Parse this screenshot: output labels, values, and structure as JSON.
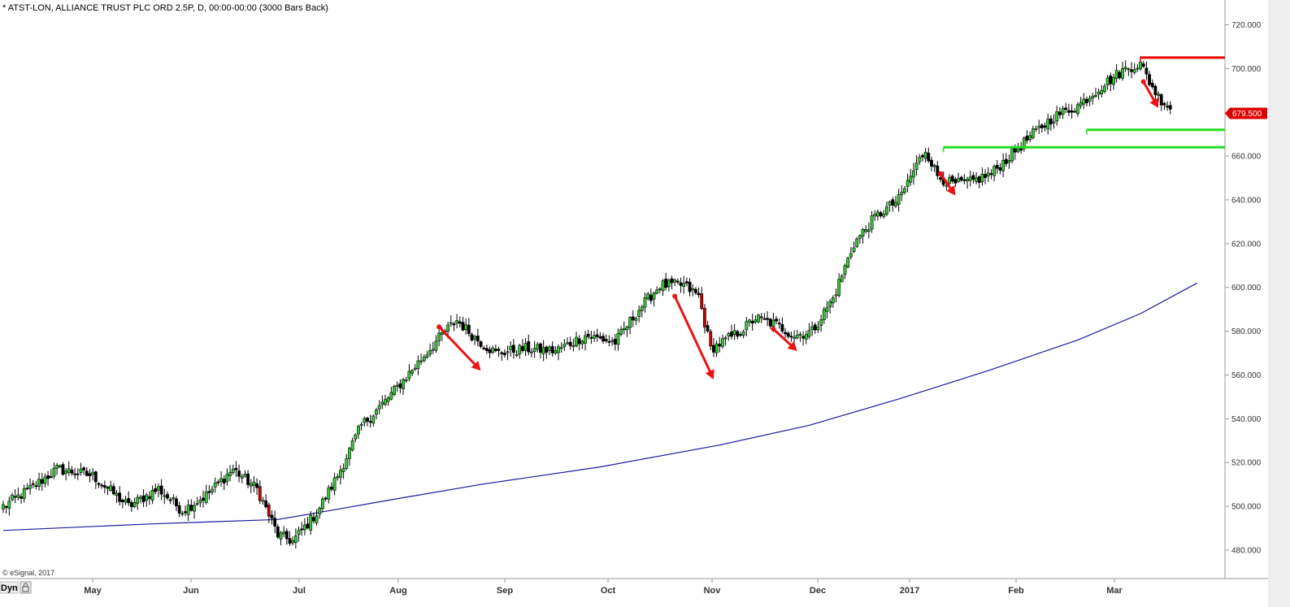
{
  "header": {
    "title": "* ATST-LON, ALLIANCE TRUST PLC ORD 2.5P, D, 00:00-00:00 (3000 Bars Back)"
  },
  "footer": {
    "copyright": "© eSignal, 2017",
    "dyn_label": "Dyn"
  },
  "colors": {
    "up_candle": "#33cc33",
    "down_candle": "#000000",
    "red_candle": "#cc0000",
    "moving_average": "#1a1aa0",
    "resistance": "#ee0000",
    "support": "#22dd22",
    "arrow": "#ee1111",
    "last_price_bg": "#dd0000",
    "axis": "#999999"
  },
  "chart_data": {
    "type": "candlestick",
    "ylim": [
      475,
      725
    ],
    "yticks": [
      "720.000",
      "700.000",
      "680.000",
      "660.000",
      "640.000",
      "620.000",
      "600.000",
      "580.000",
      "560.000",
      "540.000",
      "520.000",
      "500.000",
      "480.000"
    ],
    "yticks_values": [
      720,
      700,
      680,
      660,
      640,
      620,
      600,
      580,
      560,
      540,
      520,
      500,
      480
    ],
    "xticks": [
      "May",
      "Jun",
      "Jul",
      "Aug",
      "Sep",
      "Oct",
      "Nov",
      "Dec",
      "2017",
      "Feb",
      "Mar"
    ],
    "last_price": "679.500",
    "last_price_value": 679.5,
    "anchors": [
      [
        0,
        500
      ],
      [
        8,
        507
      ],
      [
        18,
        517
      ],
      [
        30,
        514
      ],
      [
        42,
        500
      ],
      [
        52,
        508
      ],
      [
        60,
        498
      ],
      [
        68,
        505
      ],
      [
        77,
        517
      ],
      [
        85,
        508
      ],
      [
        92,
        487
      ],
      [
        97,
        484
      ],
      [
        105,
        497
      ],
      [
        112,
        514
      ],
      [
        120,
        537
      ],
      [
        128,
        548
      ],
      [
        138,
        564
      ],
      [
        148,
        580
      ],
      [
        152,
        585
      ],
      [
        158,
        577
      ],
      [
        165,
        570
      ],
      [
        175,
        572
      ],
      [
        185,
        571
      ],
      [
        195,
        578
      ],
      [
        205,
        575
      ],
      [
        213,
        590
      ],
      [
        220,
        601
      ],
      [
        228,
        601
      ],
      [
        233,
        596
      ],
      [
        237,
        572
      ],
      [
        241,
        575
      ],
      [
        247,
        580
      ],
      [
        252,
        586
      ],
      [
        259,
        583
      ],
      [
        265,
        578
      ],
      [
        271,
        580
      ],
      [
        278,
        595
      ],
      [
        285,
        620
      ],
      [
        292,
        632
      ],
      [
        300,
        640
      ],
      [
        306,
        656
      ],
      [
        309,
        663
      ],
      [
        313,
        651
      ],
      [
        318,
        647
      ],
      [
        324,
        648
      ],
      [
        331,
        652
      ],
      [
        338,
        661
      ],
      [
        345,
        670
      ],
      [
        352,
        678
      ],
      [
        360,
        683
      ],
      [
        368,
        692
      ],
      [
        375,
        699
      ],
      [
        378,
        701
      ],
      [
        381,
        702
      ],
      [
        384,
        694
      ],
      [
        387,
        687
      ],
      [
        391,
        682
      ]
    ],
    "moving_average_anchors": [
      [
        0,
        489
      ],
      [
        50,
        492
      ],
      [
        92,
        494
      ],
      [
        105,
        497
      ],
      [
        130,
        503
      ],
      [
        160,
        510
      ],
      [
        200,
        518
      ],
      [
        240,
        528
      ],
      [
        270,
        537
      ],
      [
        300,
        549
      ],
      [
        330,
        562
      ],
      [
        360,
        576
      ],
      [
        381,
        588
      ],
      [
        400,
        602
      ]
    ],
    "levels": [
      {
        "value": 705,
        "from": 381,
        "color": "resistance"
      },
      {
        "value": 664,
        "from": 315,
        "color": "support"
      },
      {
        "value": 672,
        "from": 363,
        "color": "support"
      }
    ],
    "arrows": [
      {
        "from": [
          146,
          582
        ],
        "to": [
          160,
          562
        ]
      },
      {
        "from": [
          225,
          596
        ],
        "to": [
          238,
          558
        ]
      },
      {
        "from": [
          258,
          581
        ],
        "to": [
          266,
          571
        ]
      },
      {
        "from": [
          314,
          652
        ],
        "to": [
          319,
          642
        ]
      },
      {
        "from": [
          382,
          694
        ],
        "to": [
          387,
          682
        ]
      }
    ]
  }
}
